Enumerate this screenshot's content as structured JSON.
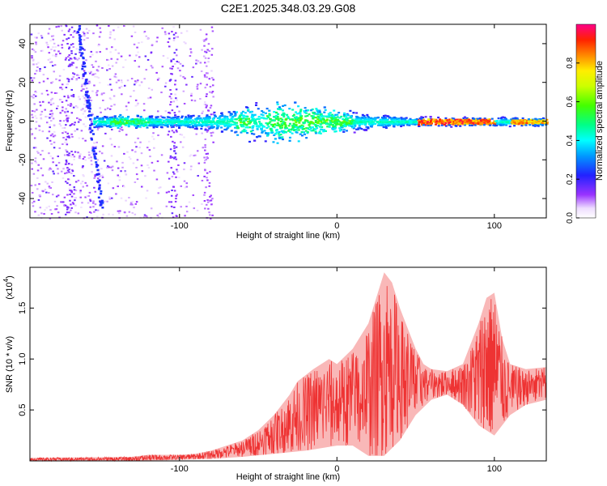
{
  "title": "C2E1.2025.348.03.29.G08",
  "colors": {
    "background": "#ffffff",
    "snr_line": "#ee3333",
    "axis": "#000000"
  },
  "chart_data": [
    {
      "type": "heatmap",
      "title": "C2E1.2025.348.03.29.G08",
      "xlabel": "Height of straight line (km)",
      "ylabel": "Frequency (Hz)",
      "xlim": [
        -195,
        133
      ],
      "ylim": [
        -50,
        50
      ],
      "x_ticks": [
        -100,
        0,
        100
      ],
      "x_tick_labels": [
        "-100",
        "0",
        "100"
      ],
      "y_ticks": [
        -40,
        -20,
        0,
        20,
        40
      ],
      "y_tick_labels": [
        "-40",
        "-20",
        "0",
        "20",
        "40"
      ],
      "colorbar": {
        "label": "Normalized spectral amplitude",
        "range": [
          0,
          1
        ],
        "ticks": [
          0.0,
          0.2,
          0.4,
          0.6,
          0.8
        ],
        "tick_labels": [
          "0.0",
          "0.2",
          "0.4",
          "0.6",
          "0.8"
        ],
        "colormap": "rainbow"
      },
      "features": [
        {
          "name": "broadband scatter",
          "x_range": [
            -195,
            -80
          ],
          "freq_range": [
            -50,
            50
          ],
          "amplitude": 0.15
        },
        {
          "name": "dispersive streak",
          "x_from": -165,
          "x_to": -150,
          "freq_from": 50,
          "freq_to": -45,
          "amplitude": 0.25
        },
        {
          "name": "carrier band",
          "x_range": [
            -155,
            133
          ],
          "center_hz": 0,
          "amplitude_peak": 1.0
        }
      ]
    },
    {
      "type": "line",
      "xlabel": "Height of straight line (km)",
      "ylabel": "SNR (10 * v/v)",
      "y_scale_label": "(x10",
      "y_scale_exponent": "4",
      "xlim": [
        -195,
        133
      ],
      "ylim": [
        0,
        1.9
      ],
      "x_ticks": [
        -100,
        0,
        100
      ],
      "x_tick_labels": [
        "-100",
        "0",
        "100"
      ],
      "y_ticks": [
        0.5,
        1.0,
        1.5
      ],
      "y_tick_labels": [
        "0.5",
        "1.0",
        "1.5"
      ],
      "series": [
        {
          "name": "SNR envelope (upper)",
          "x": [
            -195,
            -130,
            -120,
            -100,
            -90,
            -80,
            -70,
            -60,
            -50,
            -40,
            -30,
            -25,
            -15,
            -5,
            0,
            10,
            20,
            25,
            30,
            35,
            40,
            45,
            50,
            55,
            60,
            70,
            80,
            90,
            95,
            100,
            105,
            110,
            120,
            133
          ],
          "values": [
            0.03,
            0.04,
            0.06,
            0.06,
            0.07,
            0.1,
            0.15,
            0.2,
            0.3,
            0.45,
            0.65,
            0.78,
            0.9,
            1.0,
            0.95,
            1.1,
            1.35,
            1.6,
            1.85,
            1.75,
            1.5,
            1.3,
            1.1,
            0.95,
            0.9,
            0.88,
            0.95,
            1.35,
            1.6,
            1.65,
            1.2,
            0.95,
            0.9,
            0.92
          ]
        },
        {
          "name": "SNR envelope (lower)",
          "x": [
            -195,
            -130,
            -100,
            -80,
            -60,
            -40,
            -20,
            0,
            10,
            20,
            30,
            40,
            50,
            60,
            70,
            80,
            90,
            100,
            110,
            120,
            133
          ],
          "values": [
            0.0,
            0.0,
            0.01,
            0.02,
            0.04,
            0.07,
            0.1,
            0.15,
            0.15,
            0.05,
            0.05,
            0.2,
            0.45,
            0.6,
            0.65,
            0.55,
            0.35,
            0.25,
            0.45,
            0.55,
            0.6
          ]
        }
      ]
    }
  ]
}
